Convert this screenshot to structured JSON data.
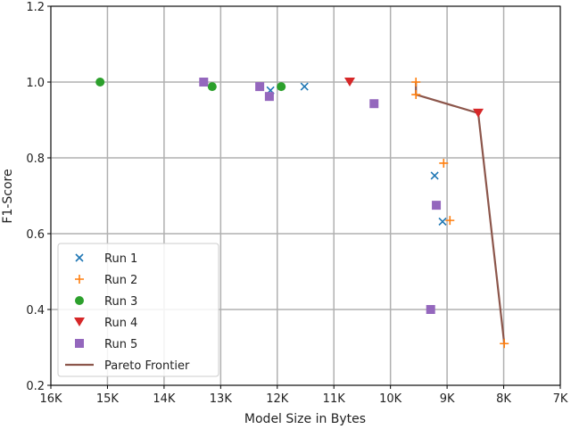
{
  "chart_data": {
    "type": "scatter",
    "title": "",
    "xlabel": "Model Size in Bytes",
    "ylabel": "F1-Score",
    "xlim": [
      16,
      7
    ],
    "ylim": [
      0.2,
      1.2
    ],
    "x_unit": "K",
    "xticks": [
      "16K",
      "15K",
      "14K",
      "13K",
      "12K",
      "11K",
      "10K",
      "9K",
      "8K",
      "7K"
    ],
    "xtick_values": [
      16,
      15,
      14,
      13,
      12,
      11,
      10,
      9,
      8,
      7
    ],
    "yticks": [
      "0.2",
      "0.4",
      "0.6",
      "0.8",
      "1.0",
      "1.2"
    ],
    "ytick_values": [
      0.2,
      0.4,
      0.6,
      0.8,
      1.0,
      1.2
    ],
    "grid": true,
    "legend_position": "lower-left",
    "series": [
      {
        "name": "Run 1",
        "marker": "x",
        "color": "#1f77b4",
        "points": [
          [
            12.12,
            0.978
          ],
          [
            11.52,
            0.988
          ],
          [
            9.22,
            0.753
          ],
          [
            9.08,
            0.632
          ]
        ]
      },
      {
        "name": "Run 2",
        "marker": "+",
        "color": "#ff7f0e",
        "points": [
          [
            9.55,
            1.0
          ],
          [
            9.55,
            0.967
          ],
          [
            9.06,
            0.786
          ],
          [
            8.95,
            0.635
          ],
          [
            7.99,
            0.31
          ]
        ]
      },
      {
        "name": "Run 3",
        "marker": "o",
        "color": "#2ca02c",
        "points": [
          [
            15.13,
            1.0
          ],
          [
            13.15,
            0.988
          ],
          [
            11.93,
            0.988
          ]
        ]
      },
      {
        "name": "Run 4",
        "marker": "v",
        "color": "#d62728",
        "points": [
          [
            10.72,
            1.0
          ],
          [
            8.45,
            0.918
          ]
        ]
      },
      {
        "name": "Run 5",
        "marker": "s",
        "color": "#9467bd",
        "points": [
          [
            13.3,
            1.0
          ],
          [
            12.31,
            0.988
          ],
          [
            12.14,
            0.962
          ],
          [
            10.29,
            0.943
          ],
          [
            9.19,
            0.675
          ],
          [
            9.29,
            0.4
          ]
        ]
      }
    ],
    "frontier": {
      "name": "Pareto Frontier",
      "color": "#8c564b",
      "points": [
        [
          9.55,
          1.0
        ],
        [
          9.55,
          0.967
        ],
        [
          8.45,
          0.918
        ],
        [
          7.99,
          0.31
        ]
      ]
    }
  }
}
